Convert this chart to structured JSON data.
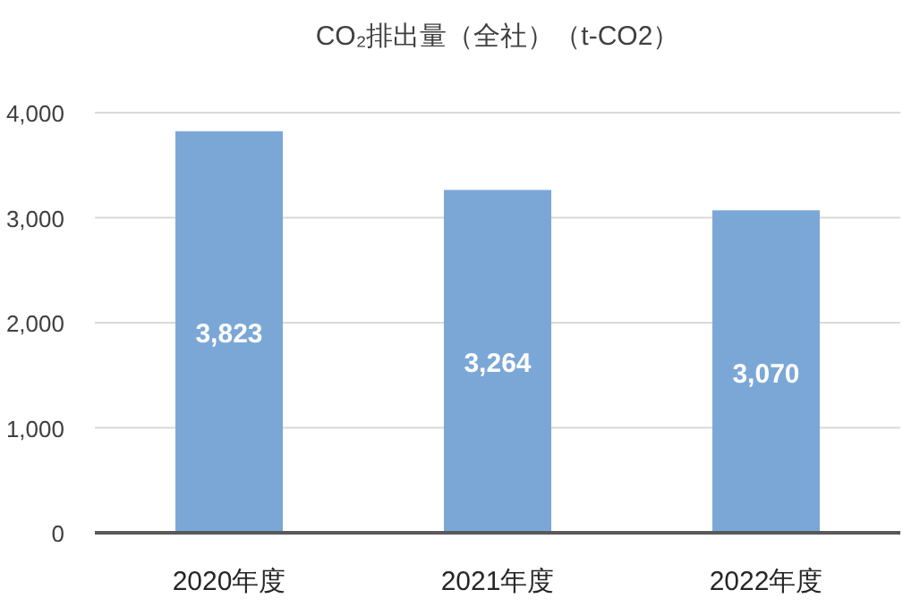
{
  "chart_data": {
    "type": "bar",
    "title": "CO₂排出量（全社）（t-CO2）",
    "categories": [
      "2020年度",
      "2021年度",
      "2022年度"
    ],
    "values": [
      3823,
      3264,
      3070
    ],
    "value_labels": [
      "3,823",
      "3,264",
      "3,070"
    ],
    "color": "#7ba7d7",
    "ylim": [
      0,
      4000
    ],
    "yticks": [
      {
        "value": 0,
        "label": "0"
      },
      {
        "value": 1000,
        "label": "1,000"
      },
      {
        "value": 2000,
        "label": "2,000"
      },
      {
        "value": 3000,
        "label": "3,000"
      },
      {
        "value": 4000,
        "label": "4,000"
      }
    ],
    "grid": "y"
  }
}
